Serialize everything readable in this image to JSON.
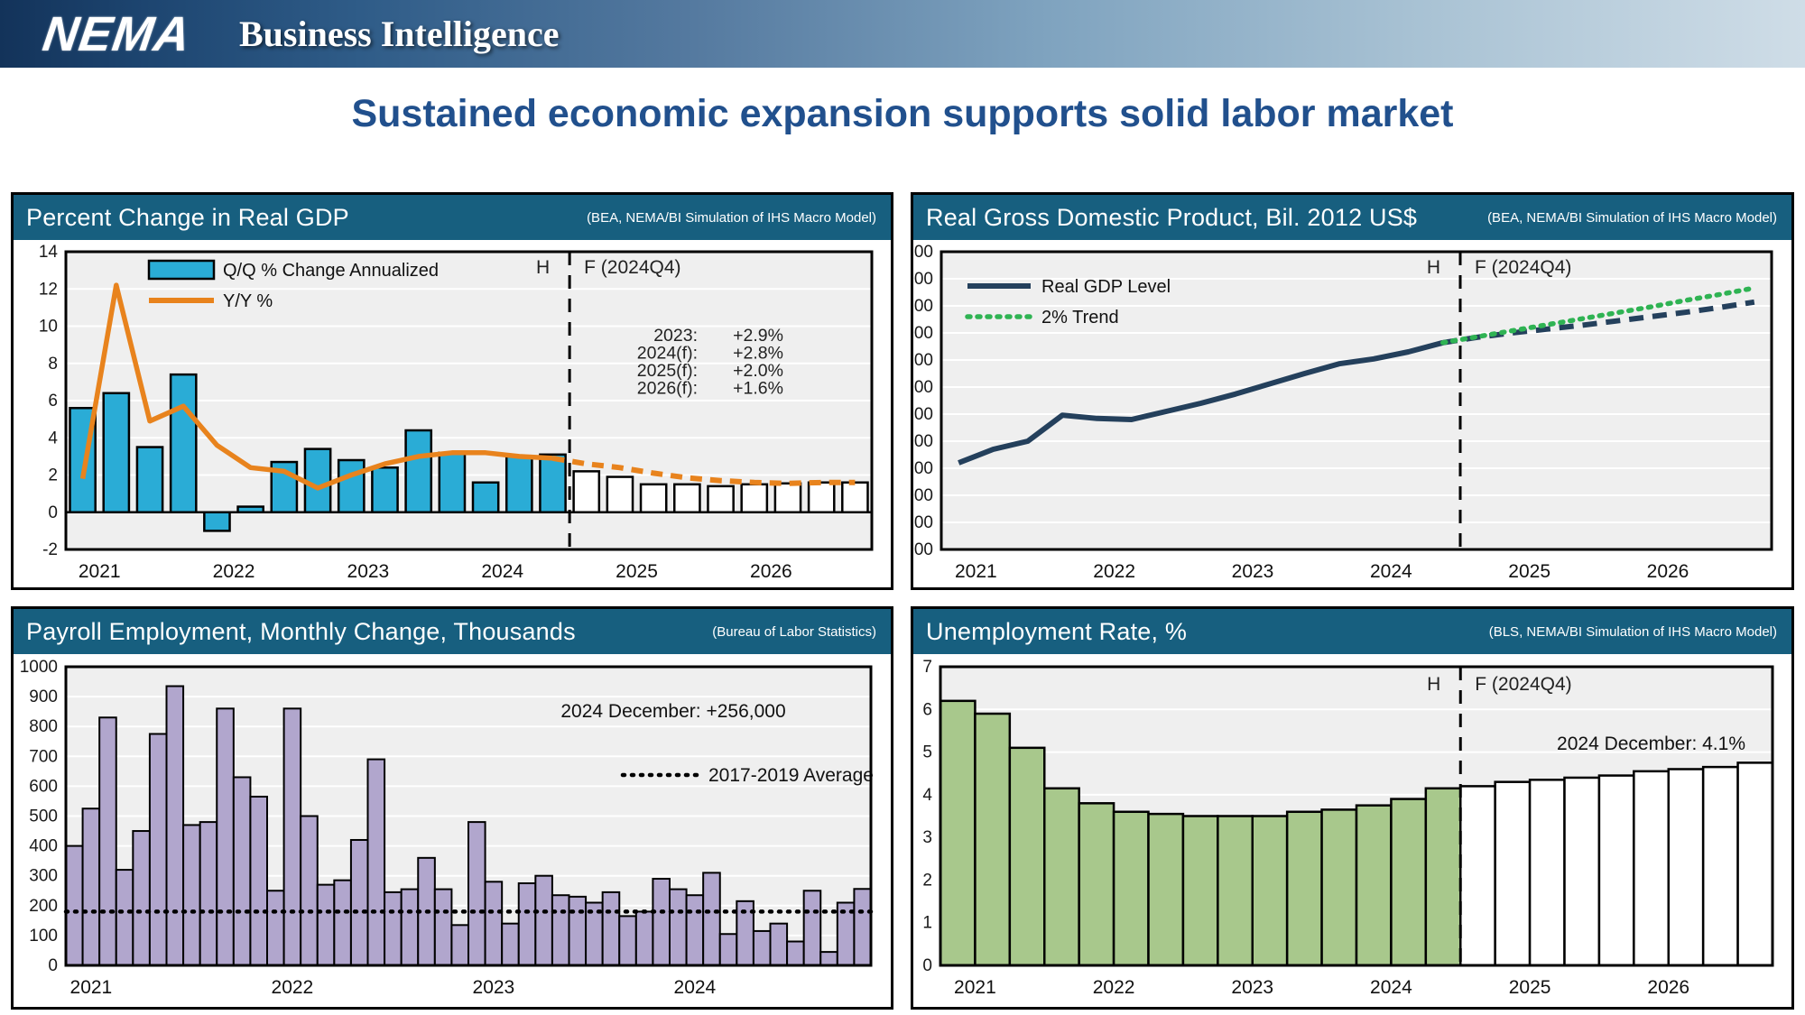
{
  "header": {
    "logo": "NEMA",
    "brand": "Business Intelligence"
  },
  "page_title": "Sustained economic expansion supports solid labor market",
  "colors": {
    "panel_header": "#175F7F",
    "title_blue": "#21508D",
    "qq_bar": "#2AACD6",
    "orange": "#E8831D",
    "navy": "#24405C",
    "trend_green": "#2FB353",
    "payroll_purple": "#B1A6CD",
    "unemp_green": "#A8C88C",
    "forecast_white": "#FFFFFF",
    "plot_bg": "#EFEFEF",
    "grid": "#FFFFFF",
    "axis_text": "#1A1A1A",
    "ink": "#000000",
    "annot": "#222222"
  },
  "chart_data": [
    {
      "id": "gdp_qq",
      "type": "bar",
      "title": "Percent Change in Real GDP",
      "source": "(BEA, NEMA/BI Simulation of IHS Macro Model)",
      "ylim": [
        -2,
        14
      ],
      "ystep": 2,
      "grid": true,
      "x_years": [
        "2021",
        "2022",
        "2023",
        "2024",
        "2025",
        "2026"
      ],
      "history_label": "H",
      "forecast_label": "F (2024Q4)",
      "forecast_starts_at_quarter": 15,
      "series": [
        {
          "name": "Q/Q % Change Annualized",
          "type": "bar",
          "historical": [
            5.6,
            6.4,
            3.5,
            7.4,
            -1.0,
            0.3,
            2.7,
            3.4,
            2.8,
            2.4,
            4.4,
            3.2,
            1.6,
            3.0,
            3.1
          ],
          "forecast": [
            2.2,
            1.9,
            1.5,
            1.5,
            1.4,
            1.5,
            1.55,
            1.6,
            1.6
          ]
        },
        {
          "name": "Y/Y %",
          "type": "line",
          "historical": [
            1.8,
            12.2,
            4.9,
            5.7,
            3.6,
            2.4,
            2.2,
            1.3,
            2.0,
            2.6,
            3.0,
            3.2,
            3.2,
            3.0,
            2.9
          ],
          "forecast": [
            2.6,
            2.4,
            2.1,
            1.85,
            1.7,
            1.6,
            1.55,
            1.6,
            1.6
          ]
        }
      ],
      "annotation_table": [
        [
          "2023:",
          "+2.9%"
        ],
        [
          "2024(f):",
          "+2.8%"
        ],
        [
          "2025(f):",
          "+2.0%"
        ],
        [
          "2026(f):",
          "+1.6%"
        ]
      ]
    },
    {
      "id": "gdp_level",
      "type": "line",
      "title": "Real Gross Domestic Product, Bil. 2012 US$",
      "source": "(BEA, NEMA/BI Simulation of IHS Macro Model)",
      "ylim": [
        18000,
        23500
      ],
      "ystep": 500,
      "grid": true,
      "x_years": [
        "2021",
        "2022",
        "2023",
        "2024",
        "2025",
        "2026"
      ],
      "history_label": "H",
      "forecast_label": "F (2024Q4)",
      "forecast_starts_at_quarter": 15,
      "series": [
        {
          "name": "Real GDP Level",
          "type": "line",
          "historical": [
            19600,
            19850,
            20000,
            20480,
            20420,
            20400,
            20550,
            20700,
            20870,
            21060,
            21250,
            21430,
            21520,
            21650,
            21820
          ],
          "forecast": [
            21920,
            22000,
            22070,
            22140,
            22220,
            22300,
            22380,
            22470,
            22570
          ]
        },
        {
          "name": "2% Trend",
          "type": "dotted-line",
          "values": [
            21820,
            21930,
            22040,
            22150,
            22260,
            22370,
            22480,
            22600,
            22710,
            22830
          ]
        }
      ]
    },
    {
      "id": "payroll",
      "type": "bar",
      "title": "Payroll Employment, Monthly Change, Thousands",
      "source": "(Bureau of Labor Statistics)",
      "ylim": [
        0,
        1000
      ],
      "ystep": 100,
      "grid": true,
      "x_years": [
        "2021",
        "2022",
        "2023",
        "2024"
      ],
      "values": [
        400,
        525,
        830,
        320,
        450,
        775,
        935,
        470,
        480,
        860,
        630,
        565,
        250,
        860,
        500,
        270,
        285,
        420,
        690,
        245,
        255,
        360,
        255,
        135,
        480,
        280,
        140,
        275,
        300,
        235,
        230,
        210,
        245,
        165,
        180,
        290,
        255,
        235,
        310,
        105,
        215,
        115,
        140,
        80,
        250,
        45,
        210,
        256
      ],
      "average_line": {
        "value": 180,
        "label": "2017-2019 Average"
      },
      "annotation": "2024 December: +256,000"
    },
    {
      "id": "unemployment",
      "type": "bar",
      "title": "Unemployment Rate, %",
      "source": "(BLS, NEMA/BI Simulation of IHS Macro Model)",
      "ylim": [
        0,
        7
      ],
      "ystep": 1,
      "grid": true,
      "x_years": [
        "2021",
        "2022",
        "2023",
        "2024",
        "2025",
        "2026"
      ],
      "history_label": "H",
      "forecast_label": "F (2024Q4)",
      "forecast_starts_at_quarter": 15,
      "historical": [
        6.2,
        5.9,
        5.1,
        4.15,
        3.8,
        3.6,
        3.55,
        3.5,
        3.5,
        3.5,
        3.6,
        3.65,
        3.75,
        3.9,
        4.15
      ],
      "forecast": [
        4.2,
        4.3,
        4.35,
        4.4,
        4.45,
        4.55,
        4.6,
        4.65,
        4.75
      ],
      "annotation": "2024 December: 4.1%"
    }
  ]
}
